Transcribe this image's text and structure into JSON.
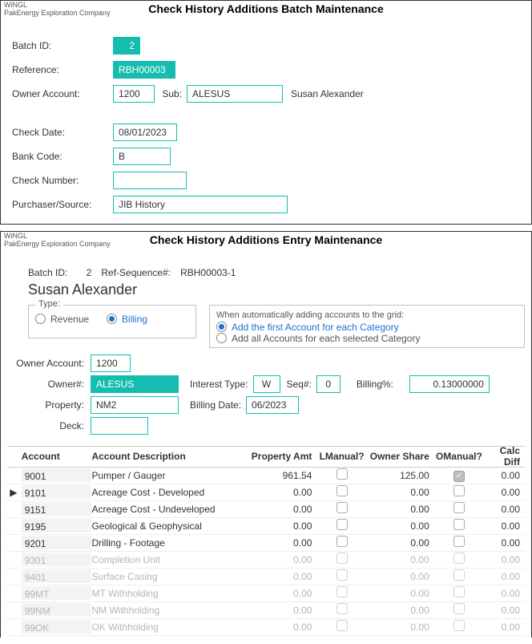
{
  "window1": {
    "app": "WiNGL",
    "company": "PakEnergy Exploration Company",
    "title": "Check History Additions Batch Maintenance",
    "labels": {
      "batch_id": "Batch ID:",
      "reference": "Reference:",
      "owner_account": "Owner Account:",
      "sub": "Sub:",
      "check_date": "Check Date:",
      "bank_code": "Bank Code:",
      "check_number": "Check Number:",
      "purchaser": "Purchaser/Source:"
    },
    "values": {
      "batch_id": "2",
      "reference": "RBH00003",
      "owner_account": "1200",
      "sub": "ALESUS",
      "owner_name": "Susan Alexander",
      "check_date": "08/01/2023",
      "bank_code": "B",
      "check_number": "",
      "purchaser": "JIB History"
    }
  },
  "window2": {
    "app": "WiNGL",
    "company": "PakEnergy Exploration Company",
    "title": "Check History Additions Entry Maintenance",
    "top": {
      "batch_id_lbl": "Batch ID:",
      "batch_id": "2",
      "ref_seq_lbl": "Ref-Sequence#:",
      "ref_seq": "RBH00003-1",
      "owner_name": "Susan Alexander"
    },
    "type_group": {
      "legend": "Type:",
      "revenue": "Revenue",
      "billing": "Billing"
    },
    "auto_group": {
      "legend": "When automatically adding accounts to the grid:",
      "opt1": "Add the first Account for each Category",
      "opt2": "Add all Accounts for each selected Category"
    },
    "labels": {
      "owner_account": "Owner Account:",
      "owner_num": "Owner#:",
      "interest_type": "Interest Type:",
      "seq": "Seq#:",
      "billing_pct": "Billing%:",
      "property": "Property:",
      "billing_date": "Billing Date:",
      "deck": "Deck:"
    },
    "values": {
      "owner_account": "1200",
      "owner_num": "ALESUS",
      "interest_type": "W",
      "seq": "0",
      "billing_pct": "0.13000000",
      "property": "NM2",
      "billing_date": "06/2023",
      "deck": ""
    },
    "grid": {
      "headers": {
        "account": "Account",
        "desc": "Account Description",
        "pamt": "Property Amt",
        "lman": "LManual?",
        "oshr": "Owner Share",
        "oman": "OManual?",
        "diff": "Calc Diff"
      },
      "rows": [
        {
          "mark": "",
          "acct": "9001",
          "desc": "Pumper / Gauger",
          "pamt": "961.54",
          "lman": false,
          "oshr": "125.00",
          "oman": true,
          "diff": "0.00",
          "faded": false
        },
        {
          "mark": "▶",
          "acct": "9101",
          "desc": "Acreage Cost - Developed",
          "pamt": "0.00",
          "lman": false,
          "oshr": "0.00",
          "oman": false,
          "diff": "0.00",
          "faded": false
        },
        {
          "mark": "",
          "acct": "9151",
          "desc": "Acreage Cost - Undeveloped",
          "pamt": "0.00",
          "lman": false,
          "oshr": "0.00",
          "oman": false,
          "diff": "0.00",
          "faded": false
        },
        {
          "mark": "",
          "acct": "9195",
          "desc": "Geological & Geophysical",
          "pamt": "0.00",
          "lman": false,
          "oshr": "0.00",
          "oman": false,
          "diff": "0.00",
          "faded": false
        },
        {
          "mark": "",
          "acct": "9201",
          "desc": "Drilling - Footage",
          "pamt": "0.00",
          "lman": false,
          "oshr": "0.00",
          "oman": false,
          "diff": "0.00",
          "faded": false
        },
        {
          "mark": "",
          "acct": "9301",
          "desc": "Completion Unit",
          "pamt": "0.00",
          "lman": false,
          "oshr": "0.00",
          "oman": false,
          "diff": "0.00",
          "faded": true
        },
        {
          "mark": "",
          "acct": "9401",
          "desc": "Surface Casing",
          "pamt": "0.00",
          "lman": false,
          "oshr": "0.00",
          "oman": false,
          "diff": "0.00",
          "faded": true
        },
        {
          "mark": "",
          "acct": "99MT",
          "desc": "MT Withholding",
          "pamt": "0.00",
          "lman": false,
          "oshr": "0.00",
          "oman": false,
          "diff": "0.00",
          "faded": true
        },
        {
          "mark": "",
          "acct": "99NM",
          "desc": "NM Withholding",
          "pamt": "0.00",
          "lman": false,
          "oshr": "0.00",
          "oman": false,
          "diff": "0.00",
          "faded": true
        },
        {
          "mark": "",
          "acct": "99OK",
          "desc": "OK Withholding",
          "pamt": "0.00",
          "lman": false,
          "oshr": "0.00",
          "oman": false,
          "diff": "0.00",
          "faded": true
        }
      ]
    }
  }
}
